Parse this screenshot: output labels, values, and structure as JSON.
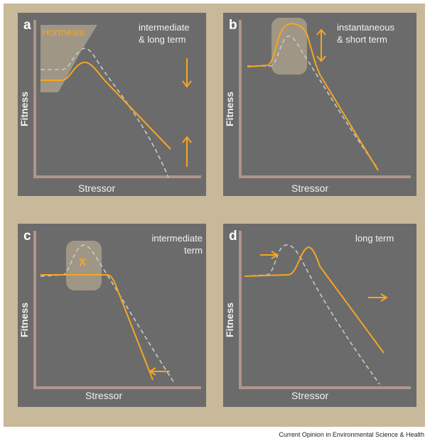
{
  "colors": {
    "background": "#c8b99a",
    "panel": "#6b6b6b",
    "axis": "#b0958b",
    "curve": "#f5a623",
    "reference": "#c9c9c9",
    "highlight": "#a89d8a"
  },
  "panels": [
    {
      "label": "a",
      "note": [
        "intermediate",
        "& long term"
      ],
      "xlabel": "Stressor",
      "ylabel": "Fitness",
      "annotation": "Hormesis"
    },
    {
      "label": "b",
      "note": [
        "instantaneous",
        "& short term"
      ],
      "xlabel": "Stressor",
      "ylabel": "Fitness"
    },
    {
      "label": "c",
      "note": [
        "intermediate",
        "term"
      ],
      "xlabel": "Stressor",
      "ylabel": "Fitness",
      "marker": "x"
    },
    {
      "label": "d",
      "note": [
        "long term"
      ],
      "xlabel": "Stressor",
      "ylabel": "Fitness"
    }
  ],
  "credit": "Current Opinion in Environmental Science & Health"
}
